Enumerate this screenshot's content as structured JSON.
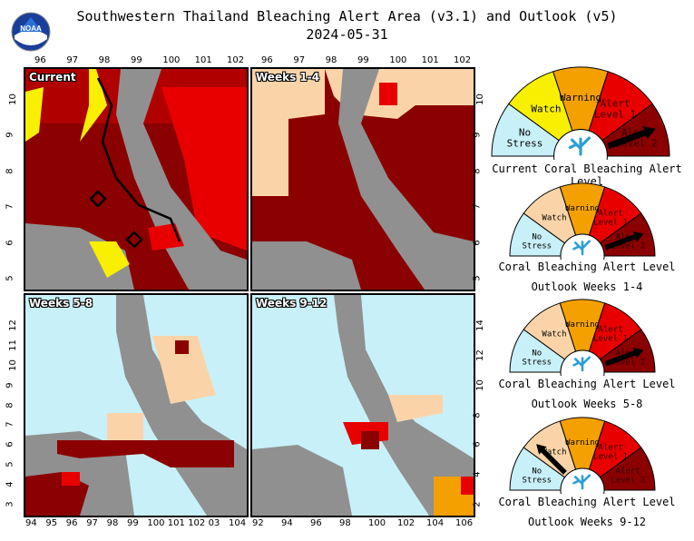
{
  "header": {
    "title": "Southwestern Thailand Bleaching Alert Area (v3.1) and Outlook (v5)",
    "date": "2024-05-31",
    "logo_text": "NOAA"
  },
  "colors": {
    "no_stress": "#c8f0f8",
    "watch": "#f8f000",
    "watch_outlook": "#fad4a8",
    "warning": "#f4a000",
    "alert1": "#e80000",
    "alert2": "#8b0000",
    "land": "#909090"
  },
  "panels": [
    {
      "label": "Current",
      "top_ticks": [
        "96",
        "97",
        "98",
        "99",
        "100",
        "101",
        "102"
      ],
      "left_ticks": [
        "10",
        "9",
        "8",
        "7",
        "6",
        "5"
      ],
      "right_ticks": []
    },
    {
      "label": "Weeks 1-4",
      "top_ticks": [
        "96",
        "97",
        "98",
        "99",
        "100",
        "101",
        "102"
      ],
      "left_ticks": [],
      "right_ticks": [
        "10",
        "9",
        "8",
        "7",
        "6",
        "5"
      ]
    },
    {
      "label": "Weeks 5-8",
      "bottom_ticks": [
        "94",
        "95",
        "96",
        "97",
        "98",
        "99",
        "100",
        "101",
        "102",
        "03",
        "104"
      ],
      "left_ticks": [
        "12",
        "11",
        "10",
        "9",
        "8",
        "7",
        "6",
        "5",
        "4",
        "3"
      ]
    },
    {
      "label": "Weeks 9-12",
      "bottom_ticks": [
        "92",
        "94",
        "96",
        "98",
        "100",
        "102",
        "104",
        "106"
      ],
      "right_ticks": [
        "14",
        "12",
        "10",
        "8",
        "6",
        "4",
        "2"
      ]
    }
  ],
  "gauges": [
    {
      "caption1": "Current Coral Bleaching Alert Level",
      "caption2": "",
      "level": "Alert Level 2",
      "watch_color": "#f8f000"
    },
    {
      "caption1": "Coral Bleaching Alert Level",
      "caption2": "Outlook Weeks 1-4",
      "level": "Alert Level 2",
      "watch_color": "#fad4a8"
    },
    {
      "caption1": "Coral Bleaching Alert Level",
      "caption2": "Outlook Weeks 5-8",
      "level": "Alert Level 2",
      "watch_color": "#fad4a8"
    },
    {
      "caption1": "Coral Bleaching Alert Level",
      "caption2": "Outlook Weeks 9-12",
      "level": "Watch",
      "watch_color": "#fad4a8"
    }
  ],
  "gauge_labels": {
    "no_stress_1": "No",
    "no_stress_2": "Stress",
    "watch": "Watch",
    "warning": "Warning",
    "alert1_1": "Alert",
    "alert1_2": "Level 1",
    "alert2_1": "Alert",
    "alert2_2": "Level 2"
  }
}
